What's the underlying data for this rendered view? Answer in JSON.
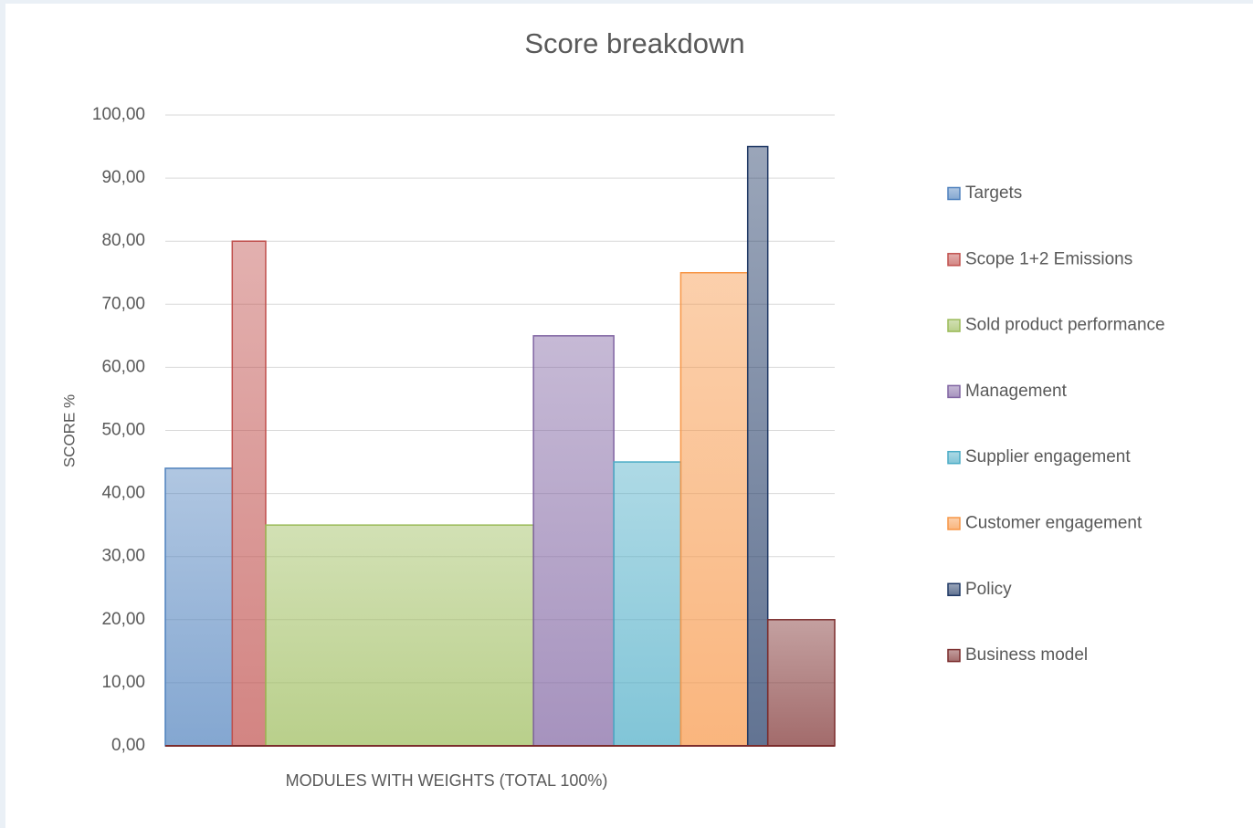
{
  "chart_data": {
    "type": "variable-width-bar",
    "title": "Score breakdown",
    "y_label": "SCORE %",
    "x_label": "MODULES WITH WEIGHTS (TOTAL 100%)",
    "ylim": [
      0,
      100
    ],
    "yticks": [
      {
        "value": 0,
        "label": "0,00"
      },
      {
        "value": 10,
        "label": "10,00"
      },
      {
        "value": 20,
        "label": "20,00"
      },
      {
        "value": 30,
        "label": "30,00"
      },
      {
        "value": 40,
        "label": "40,00"
      },
      {
        "value": 50,
        "label": "50,00"
      },
      {
        "value": 60,
        "label": "60,00"
      },
      {
        "value": 70,
        "label": "70,00"
      },
      {
        "value": 80,
        "label": "80,00"
      },
      {
        "value": 90,
        "label": "90,00"
      },
      {
        "value": 100,
        "label": "100,00"
      }
    ],
    "grid": true,
    "legend": "right",
    "series": [
      {
        "name": "Targets",
        "color": "#4f81bd",
        "weight": 10,
        "values": [
          44
        ]
      },
      {
        "name": "Scope 1+2 Emissions",
        "color": "#c0504d",
        "weight": 5,
        "values": [
          80
        ]
      },
      {
        "name": "Sold product performance",
        "color": "#9bbb59",
        "weight": 40,
        "values": [
          35
        ]
      },
      {
        "name": "Management",
        "color": "#8064a2",
        "weight": 12,
        "values": [
          65
        ]
      },
      {
        "name": "Supplier engagement",
        "color": "#4bacc6",
        "weight": 10,
        "values": [
          45
        ]
      },
      {
        "name": "Customer engagement",
        "color": "#f79646",
        "weight": 10,
        "values": [
          75
        ]
      },
      {
        "name": "Policy",
        "color": "#1f3864",
        "weight": 3,
        "values": [
          95
        ]
      },
      {
        "name": "Business model",
        "color": "#7b2c2c",
        "weight": 10,
        "values": [
          20
        ]
      }
    ]
  }
}
